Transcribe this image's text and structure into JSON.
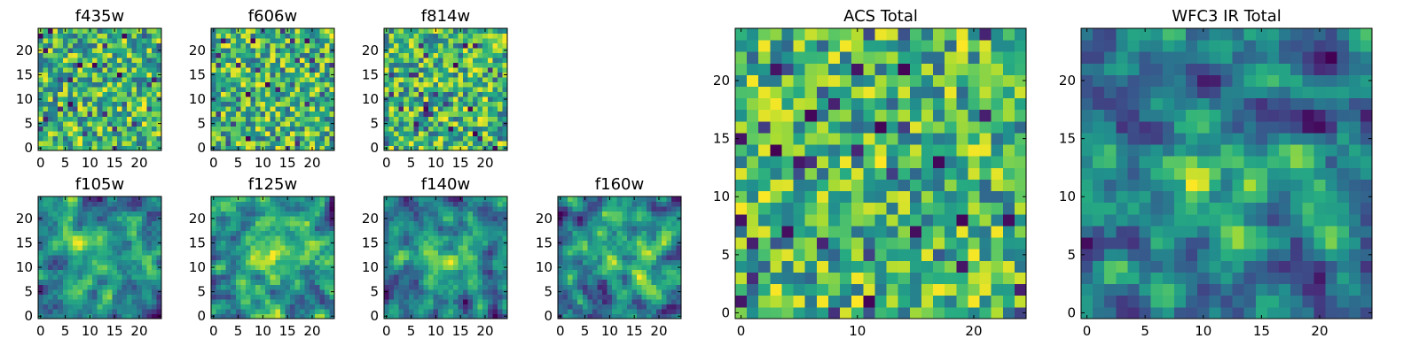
{
  "figure": {
    "colormap": "viridis"
  },
  "chart_data": [
    {
      "id": "f435w",
      "type": "heatmap",
      "title": "f435w",
      "rows": 25,
      "cols": 25,
      "xticks": [
        0,
        5,
        10,
        15,
        20
      ],
      "yticks": [
        0,
        5,
        10,
        15,
        20
      ],
      "value_range": [
        0,
        1
      ],
      "pattern": "noise",
      "seed": 11
    },
    {
      "id": "f606w",
      "type": "heatmap",
      "title": "f606w",
      "rows": 25,
      "cols": 25,
      "xticks": [
        0,
        5,
        10,
        15,
        20
      ],
      "yticks": [
        0,
        5,
        10,
        15,
        20
      ],
      "value_range": [
        0,
        1
      ],
      "pattern": "noise",
      "seed": 23
    },
    {
      "id": "f814w",
      "type": "heatmap",
      "title": "f814w",
      "rows": 25,
      "cols": 25,
      "xticks": [
        0,
        5,
        10,
        15,
        20
      ],
      "yticks": [
        0,
        5,
        10,
        15,
        20
      ],
      "value_range": [
        0,
        1
      ],
      "pattern": "noise",
      "seed": 37
    },
    {
      "id": "f105w",
      "type": "heatmap",
      "title": "f105w",
      "rows": 25,
      "cols": 25,
      "xticks": [
        0,
        5,
        10,
        15,
        20
      ],
      "yticks": [
        0,
        5,
        10,
        15,
        20
      ],
      "value_range": [
        0,
        1
      ],
      "pattern": "smooth",
      "seed": 41
    },
    {
      "id": "f125w",
      "type": "heatmap",
      "title": "f125w",
      "rows": 25,
      "cols": 25,
      "xticks": [
        0,
        5,
        10,
        15,
        20
      ],
      "yticks": [
        0,
        5,
        10,
        15,
        20
      ],
      "value_range": [
        0,
        1
      ],
      "pattern": "smooth",
      "seed": 53
    },
    {
      "id": "f140w",
      "type": "heatmap",
      "title": "f140w",
      "rows": 25,
      "cols": 25,
      "xticks": [
        0,
        5,
        10,
        15,
        20
      ],
      "yticks": [
        0,
        5,
        10,
        15,
        20
      ],
      "value_range": [
        0,
        1
      ],
      "pattern": "smooth",
      "seed": 67
    },
    {
      "id": "f160w",
      "type": "heatmap",
      "title": "f160w",
      "rows": 25,
      "cols": 25,
      "xticks": [
        0,
        5,
        10,
        15,
        20
      ],
      "yticks": [
        0,
        5,
        10,
        15,
        20
      ],
      "value_range": [
        0,
        1
      ],
      "pattern": "smooth",
      "seed": 79
    },
    {
      "id": "acs-total",
      "type": "heatmap",
      "title": "ACS Total",
      "rows": 25,
      "cols": 25,
      "xticks": [
        0,
        10,
        20
      ],
      "yticks": [
        0,
        5,
        10,
        15,
        20
      ],
      "value_range": [
        0,
        1
      ],
      "pattern": "noise",
      "seed": 83
    },
    {
      "id": "wfc3-ir-total",
      "type": "heatmap",
      "title": "WFC3 IR Total",
      "rows": 25,
      "cols": 25,
      "xticks": [
        0,
        5,
        10,
        15,
        20
      ],
      "yticks": [
        0,
        5,
        10,
        15,
        20
      ],
      "value_range": [
        0,
        1
      ],
      "pattern": "smooth",
      "seed": 97
    }
  ]
}
